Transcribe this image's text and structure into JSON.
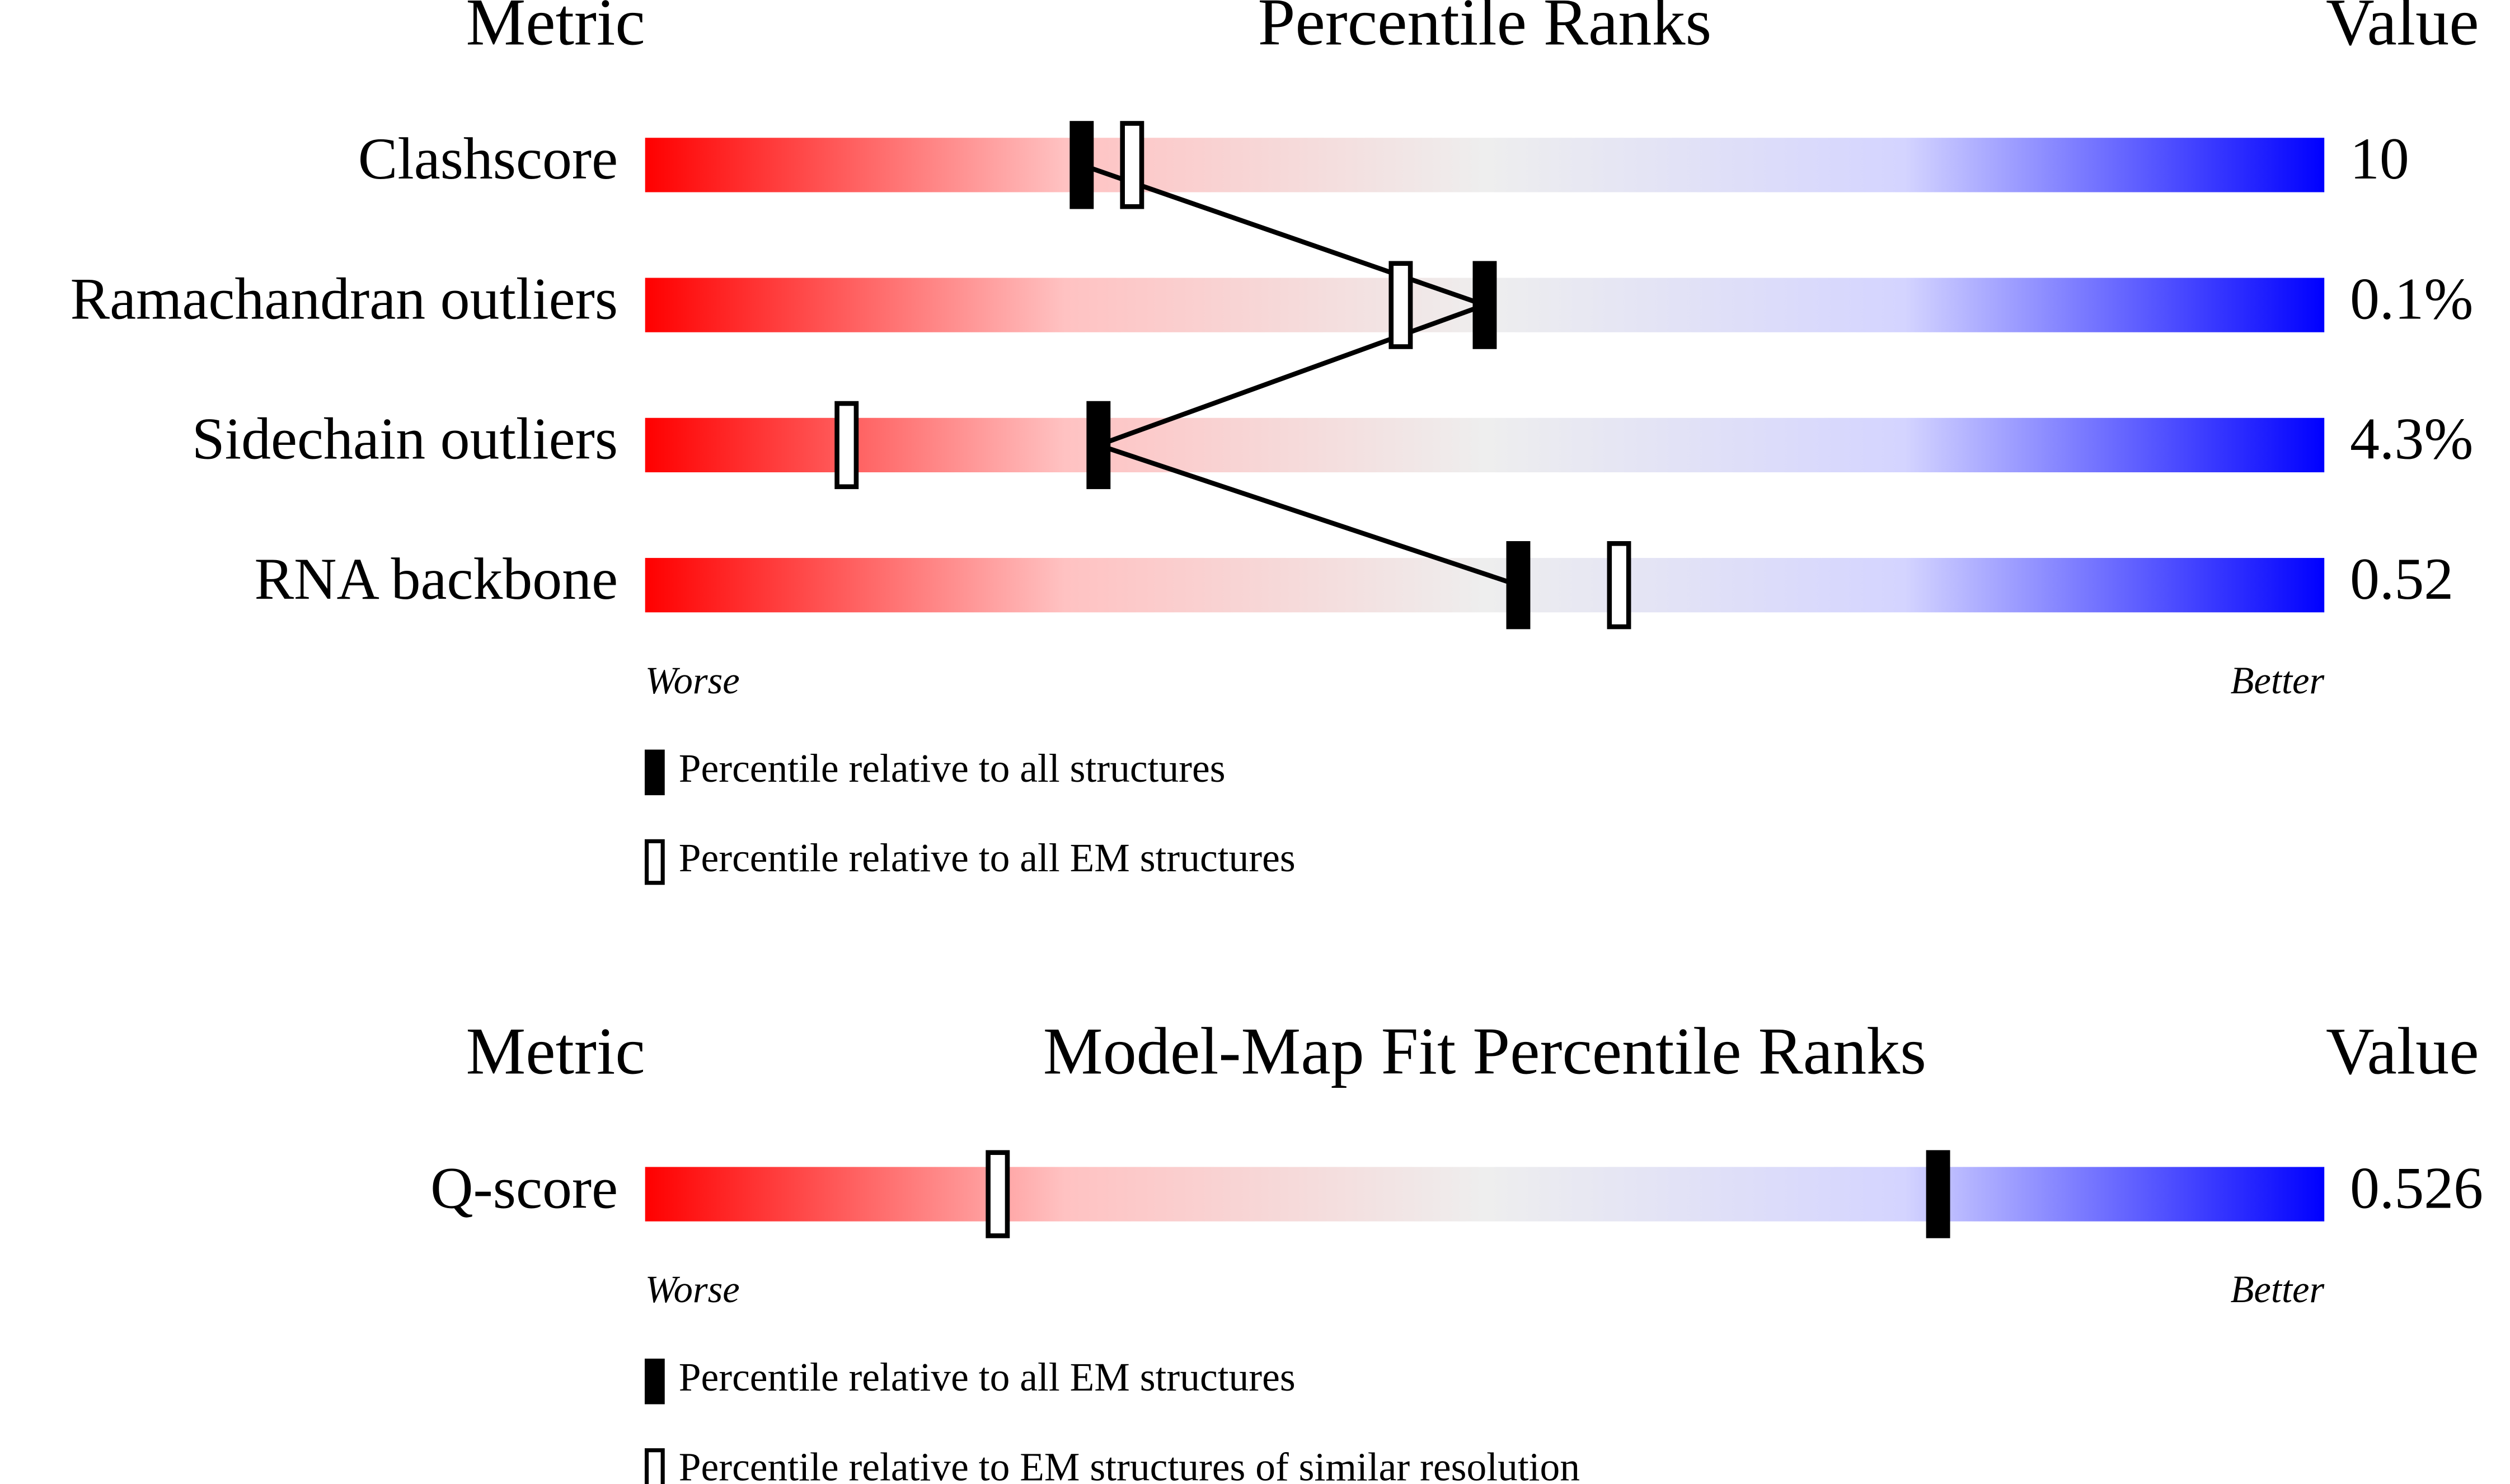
{
  "chart_data": [
    {
      "type": "percentile",
      "title": "Percentile Ranks",
      "metric_header": "Metric",
      "value_header": "Value",
      "categories": [
        "Clashscore",
        "Ramachandran outliers",
        "Sidechain outliers",
        "RNA backbone"
      ],
      "metric_values": [
        "10",
        "0.1%",
        "4.3%",
        "0.52"
      ],
      "xlim": [
        0,
        100
      ],
      "axis_labels": [
        "Worse",
        "Better"
      ],
      "series": [
        {
          "name": "Percentile relative to all structures",
          "color": "#000000",
          "values": [
            26,
            50,
            27,
            52
          ]
        },
        {
          "name": "Percentile relative to all EM structures",
          "color": "#ffffff",
          "values": [
            29,
            45,
            12,
            58
          ]
        }
      ]
    },
    {
      "type": "percentile",
      "title": "Model-Map Fit Percentile Ranks",
      "metric_header": "Metric",
      "value_header": "Value",
      "categories": [
        "Q-score"
      ],
      "metric_values": [
        "0.526"
      ],
      "xlim": [
        0,
        100
      ],
      "axis_labels": [
        "Worse",
        "Better"
      ],
      "series": [
        {
          "name": "Percentile relative to all EM structures",
          "color": "#000000",
          "values": [
            77
          ]
        },
        {
          "name": "Percentile relative to EM structures of similar resolution",
          "color": "#ffffff",
          "values": [
            21
          ]
        }
      ]
    }
  ]
}
